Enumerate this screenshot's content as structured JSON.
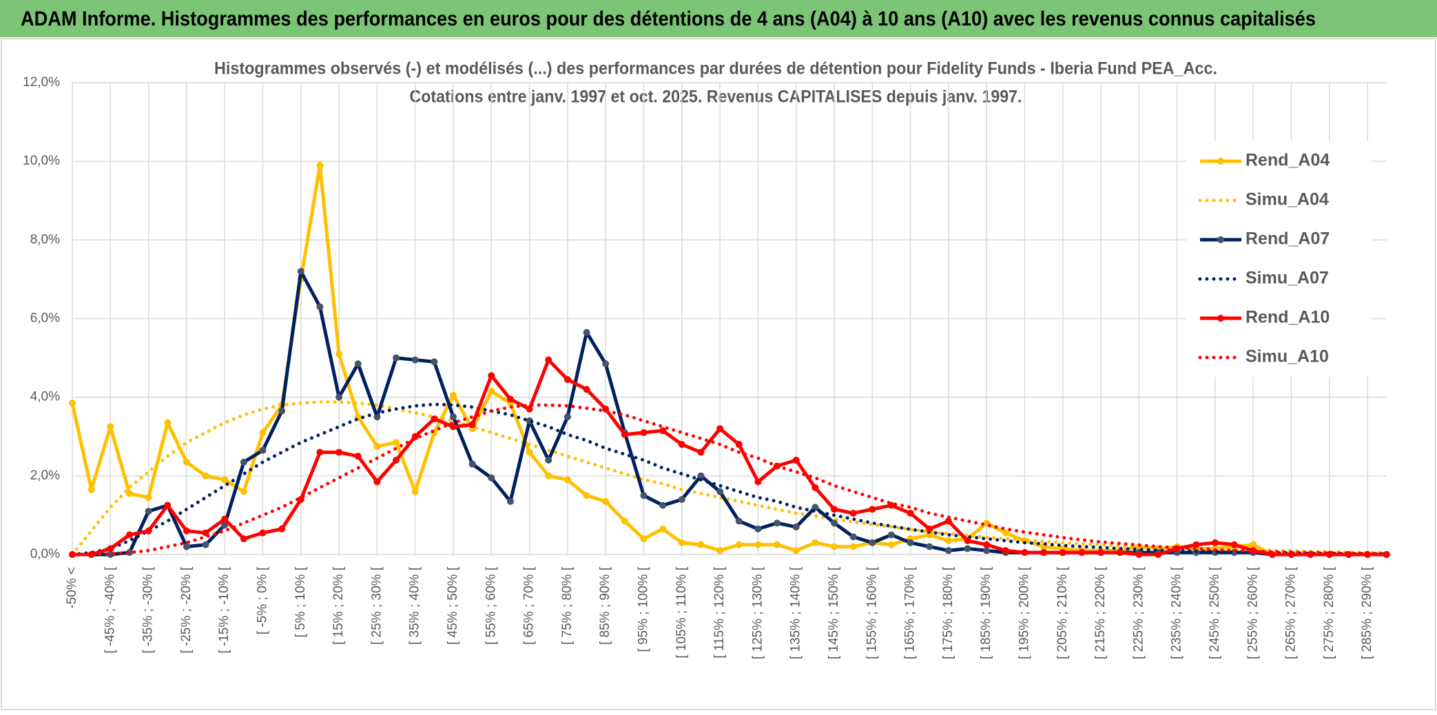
{
  "chart_data": {
    "type": "line",
    "title": "ADAM Informe. Histogrammes des performances en euros pour des détentions de 4 ans (A04) à 10 ans (A10) avec les revenus connus capitalisés",
    "subtitle": [
      "Histogrammes observés (-) et modélisés (...) des performances par durées de détention pour Fidelity Funds - Iberia Fund PEA_Acc.",
      "Cotations entre janv. 1997 et oct. 2025. Revenus CAPITALISES depuis janv. 1997."
    ],
    "categories": [
      "-50% <",
      null,
      "[ -45% ; -40% [",
      null,
      "[ -35% ; -30% [",
      null,
      "[ -25% ; -20% [",
      null,
      "[ -15% ; -10% [",
      null,
      "[ -5% ; 0% [",
      null,
      "[ 5% ; 10% [",
      null,
      "[ 15% ; 20% [",
      null,
      "[ 25% ; 30% [",
      null,
      "[ 35% ; 40% [",
      null,
      "[ 45% ; 50% [",
      null,
      "[ 55% ; 60% [",
      null,
      "[ 65% ; 70% [",
      null,
      "[ 75% ; 80% [",
      null,
      "[ 85% ; 90% [",
      null,
      "[ 95% ; 100% [",
      null,
      "[ 105% ; 110% [",
      null,
      "[ 115% ; 120% [",
      null,
      "[ 125% ; 130% [",
      null,
      "[ 135% ; 140% [",
      null,
      "[ 145% ; 150% [",
      null,
      "[ 155% ; 160% [",
      null,
      "[ 165% ; 170% [",
      null,
      "[ 175% ; 180% [",
      null,
      "[ 185% ; 190% [",
      null,
      "[ 195% ; 200% [",
      null,
      "[ 205% ; 210% [",
      null,
      "[ 215% ; 220% [",
      null,
      "[ 225% ; 230% [",
      null,
      "[ 235% ; 240% [",
      null,
      "[ 245% ; 250% [",
      null,
      "[ 255% ; 260% [",
      null,
      "[ 265% ; 270% [",
      null,
      "[ 275% ; 280% [",
      null,
      "[ 285% ; 290% [",
      null
    ],
    "series": [
      {
        "name": "Rend_A04",
        "color": "#ffc000",
        "dash": "solid",
        "markers": true,
        "values": [
          3.85,
          1.65,
          3.25,
          1.55,
          1.45,
          3.35,
          2.35,
          2.0,
          1.9,
          1.6,
          3.1,
          3.8,
          7.0,
          9.9,
          5.1,
          3.5,
          2.75,
          2.85,
          1.6,
          3.1,
          4.05,
          3.2,
          4.15,
          3.85,
          2.6,
          2.0,
          1.9,
          1.5,
          1.35,
          0.85,
          0.4,
          0.65,
          0.3,
          0.25,
          0.1,
          0.25,
          0.25,
          0.25,
          0.1,
          0.3,
          0.2,
          0.2,
          0.3,
          0.25,
          0.4,
          0.5,
          0.35,
          0.4,
          0.8,
          0.55,
          0.35,
          0.2,
          0.15,
          0.1,
          0.1,
          0.1,
          0.2,
          0.15,
          0.2,
          0.15,
          0.15,
          0.2,
          0.25,
          0,
          0,
          0,
          0,
          0,
          0,
          0
        ]
      },
      {
        "name": "Simu_A04",
        "color": "#ffc000",
        "dash": "dotted",
        "markers": false,
        "values": [
          0,
          0.6,
          1.2,
          1.7,
          2.1,
          2.5,
          2.85,
          3.1,
          3.35,
          3.55,
          3.7,
          3.8,
          3.85,
          3.88,
          3.88,
          3.85,
          3.8,
          3.7,
          3.6,
          3.5,
          3.4,
          3.25,
          3.1,
          2.95,
          2.8,
          2.65,
          2.5,
          2.35,
          2.2,
          2.05,
          1.9,
          1.8,
          1.65,
          1.55,
          1.45,
          1.35,
          1.25,
          1.15,
          1.05,
          0.98,
          0.9,
          0.83,
          0.76,
          0.7,
          0.64,
          0.58,
          0.53,
          0.49,
          0.44,
          0.4,
          0.37,
          0.33,
          0.3,
          0.27,
          0.25,
          0.22,
          0.2,
          0.18,
          0.16,
          0.15,
          0.13,
          0.12,
          0.11,
          0.1,
          0.09,
          0.08,
          0.07,
          0.06,
          0.05,
          0.05
        ]
      },
      {
        "name": "Rend_A07",
        "color": "#002060",
        "dash": "solid",
        "markers": true,
        "values": [
          0,
          0,
          0,
          0.05,
          1.1,
          1.25,
          0.2,
          0.25,
          0.75,
          2.35,
          2.65,
          3.65,
          7.2,
          6.3,
          4.0,
          4.85,
          3.5,
          5.0,
          4.95,
          4.9,
          3.5,
          2.3,
          1.95,
          1.35,
          3.4,
          2.4,
          3.5,
          5.65,
          4.85,
          3.1,
          1.5,
          1.25,
          1.4,
          2.0,
          1.6,
          0.85,
          0.65,
          0.8,
          0.7,
          1.2,
          0.8,
          0.45,
          0.3,
          0.5,
          0.3,
          0.2,
          0.1,
          0.15,
          0.1,
          0.05,
          0.05,
          0.05,
          0.05,
          0.05,
          0.05,
          0.05,
          0.05,
          0.05,
          0.05,
          0.05,
          0.05,
          0.05,
          0.05,
          0,
          0,
          0,
          0,
          0,
          0,
          0
        ]
      },
      {
        "name": "Simu_A07",
        "color": "#002060",
        "dash": "dotted",
        "markers": false,
        "values": [
          0,
          0.05,
          0.15,
          0.35,
          0.6,
          0.85,
          1.15,
          1.45,
          1.75,
          2.05,
          2.35,
          2.6,
          2.85,
          3.05,
          3.25,
          3.45,
          3.6,
          3.7,
          3.78,
          3.82,
          3.8,
          3.75,
          3.65,
          3.55,
          3.4,
          3.25,
          3.05,
          2.9,
          2.7,
          2.55,
          2.4,
          2.2,
          2.05,
          1.9,
          1.75,
          1.6,
          1.45,
          1.35,
          1.2,
          1.1,
          1.0,
          0.9,
          0.8,
          0.72,
          0.64,
          0.57,
          0.5,
          0.45,
          0.4,
          0.35,
          0.3,
          0.27,
          0.23,
          0.2,
          0.18,
          0.15,
          0.13,
          0.11,
          0.1,
          0.08,
          0.07,
          0.06,
          0.05,
          0.04,
          0.04,
          0.03,
          0.03,
          0.02,
          0.02,
          0.02
        ]
      },
      {
        "name": "Rend_A10",
        "color": "#ff0000",
        "dash": "solid",
        "markers": true,
        "values": [
          0,
          0,
          0.15,
          0.5,
          0.6,
          1.25,
          0.6,
          0.55,
          0.9,
          0.4,
          0.55,
          0.65,
          1.4,
          2.6,
          2.6,
          2.5,
          1.85,
          2.4,
          3.0,
          3.45,
          3.25,
          3.3,
          4.55,
          3.95,
          3.7,
          4.95,
          4.45,
          4.2,
          3.7,
          3.05,
          3.1,
          3.15,
          2.8,
          2.6,
          3.2,
          2.8,
          1.85,
          2.25,
          2.4,
          1.7,
          1.15,
          1.05,
          1.15,
          1.25,
          1.05,
          0.65,
          0.85,
          0.35,
          0.25,
          0.1,
          0.05,
          0.05,
          0.05,
          0.05,
          0.05,
          0.05,
          0,
          0,
          0.15,
          0.25,
          0.3,
          0.25,
          0.1,
          0,
          0,
          0,
          0,
          0,
          0,
          0
        ]
      },
      {
        "name": "Simu_A10",
        "color": "#ff0000",
        "dash": "dotted",
        "markers": false,
        "values": [
          0,
          0,
          0.02,
          0.05,
          0.1,
          0.2,
          0.3,
          0.45,
          0.6,
          0.8,
          1.0,
          1.2,
          1.45,
          1.7,
          1.95,
          2.2,
          2.45,
          2.7,
          2.95,
          3.15,
          3.35,
          3.5,
          3.65,
          3.75,
          3.8,
          3.8,
          3.78,
          3.72,
          3.65,
          3.55,
          3.4,
          3.25,
          3.1,
          2.95,
          2.8,
          2.6,
          2.45,
          2.25,
          2.1,
          1.95,
          1.75,
          1.6,
          1.45,
          1.3,
          1.2,
          1.05,
          0.95,
          0.85,
          0.75,
          0.65,
          0.57,
          0.5,
          0.43,
          0.37,
          0.32,
          0.28,
          0.24,
          0.2,
          0.17,
          0.15,
          0.12,
          0.1,
          0.09,
          0.07,
          0.06,
          0.05,
          0.04,
          0.03,
          0.03,
          0.02
        ]
      }
    ],
    "ylim": [
      0,
      12
    ],
    "yticks": [
      {
        "value": 0,
        "label": "0,0%"
      },
      {
        "value": 2,
        "label": "2,0%"
      },
      {
        "value": 4,
        "label": "4,0%"
      },
      {
        "value": 6,
        "label": "6,0%"
      },
      {
        "value": 8,
        "label": "8,0%"
      },
      {
        "value": 10,
        "label": "10,0%"
      },
      {
        "value": 12,
        "label": "12,0%"
      }
    ],
    "grid": true,
    "legend": "right"
  }
}
